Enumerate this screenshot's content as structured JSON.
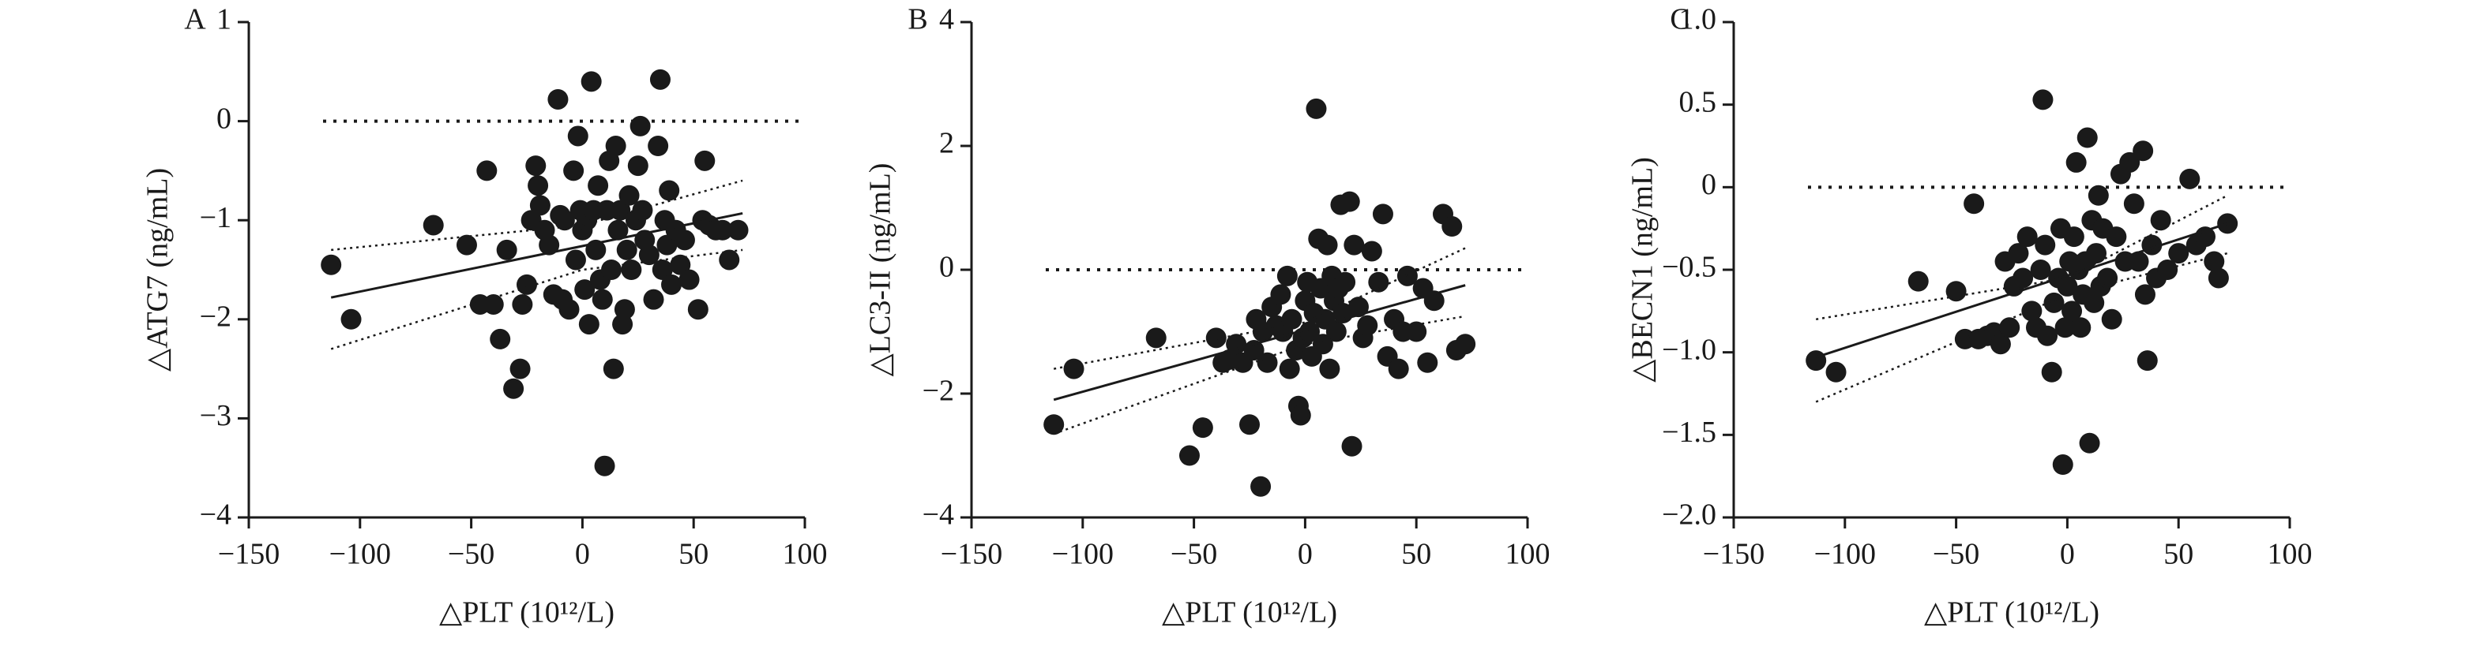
{
  "chart_data": [
    {
      "type": "scatter",
      "panel_label": "A",
      "ylabel": "△ATG7 (ng/mL)",
      "xlabel": "△PLT (10¹²/L)",
      "color": "#1a1a1a",
      "xlim": [
        -150,
        100
      ],
      "xticks": [
        {
          "value": -150,
          "label": "−150"
        },
        {
          "value": -100,
          "label": "−100"
        },
        {
          "value": -50,
          "label": "−50"
        },
        0,
        50,
        100
      ],
      "ylim": [
        -4,
        1
      ],
      "yticks": [
        1,
        0,
        {
          "value": -1,
          "label": "−1"
        },
        {
          "value": -2,
          "label": "−2"
        },
        {
          "value": -3,
          "label": "−3"
        },
        {
          "value": -4,
          "label": "−4"
        }
      ],
      "reference_y": 0,
      "x": [
        -113,
        -104,
        -67,
        -52,
        -46,
        -43,
        -40,
        -37,
        -34,
        -31,
        -28,
        -27,
        -25,
        -23,
        -21,
        -20,
        -19,
        -17,
        -15,
        -13,
        -11,
        -10,
        -9,
        -8,
        -6,
        -4,
        -3,
        -2,
        -1,
        0,
        1,
        2,
        3,
        4,
        5,
        6,
        7,
        8,
        9,
        10,
        11,
        12,
        13,
        14,
        15,
        16,
        17,
        18,
        19,
        20,
        21,
        22,
        24,
        25,
        26,
        27,
        28,
        30,
        32,
        34,
        35,
        36,
        37,
        38,
        39,
        40,
        42,
        44,
        46,
        48,
        52,
        54,
        55,
        57,
        60,
        63,
        66,
        70
      ],
      "values": [
        -1.45,
        -2.0,
        -1.05,
        -1.25,
        -1.85,
        -0.5,
        -1.85,
        -2.2,
        -1.3,
        -2.7,
        -2.5,
        -1.85,
        -1.65,
        -1.0,
        -0.45,
        -0.65,
        -0.85,
        -1.1,
        -1.25,
        -1.75,
        0.22,
        -0.95,
        -1.8,
        -1.0,
        -1.9,
        -0.5,
        -1.4,
        -0.15,
        -0.9,
        -1.1,
        -1.7,
        -1.0,
        -2.05,
        0.4,
        -0.9,
        -1.3,
        -0.65,
        -1.6,
        -1.8,
        -3.48,
        -0.9,
        -0.4,
        -1.5,
        -2.5,
        -0.25,
        -1.1,
        -0.9,
        -2.05,
        -1.9,
        -1.3,
        -0.75,
        -1.5,
        -1.0,
        -0.45,
        -0.05,
        -0.9,
        -1.2,
        -1.35,
        -1.8,
        -0.25,
        0.42,
        -1.5,
        -1.0,
        -1.25,
        -0.7,
        -1.65,
        -1.1,
        -1.45,
        -1.2,
        -1.6,
        -1.9,
        -1.0,
        -0.4,
        -1.05,
        -1.1,
        -1.1,
        -1.4,
        -1.1
      ],
      "fit": {
        "x": [
          -113,
          72
        ],
        "values": [
          -1.78,
          -0.93
        ]
      },
      "ci_upper": {
        "x": [
          -113,
          0,
          72
        ],
        "values": [
          -1.3,
          -1.05,
          -0.6
        ]
      },
      "ci_lower": {
        "x": [
          -113,
          0,
          72
        ],
        "values": [
          -2.3,
          -1.5,
          -1.3
        ]
      }
    },
    {
      "type": "scatter",
      "panel_label": "B",
      "ylabel": "△LC3-II (ng/mL)",
      "xlabel": "△PLT (10¹²/L)",
      "color": "#1a1a1a",
      "xlim": [
        -150,
        100
      ],
      "xticks": [
        {
          "value": -150,
          "label": "−150"
        },
        {
          "value": -100,
          "label": "−100"
        },
        {
          "value": -50,
          "label": "−50"
        },
        0,
        50,
        100
      ],
      "ylim": [
        -4,
        4
      ],
      "yticks": [
        4,
        2,
        0,
        {
          "value": -2,
          "label": "−2"
        },
        {
          "value": -4,
          "label": "−4"
        }
      ],
      "reference_y": 0,
      "x": [
        -113,
        -104,
        -67,
        -52,
        -46,
        -40,
        -37,
        -34,
        -31,
        -28,
        -25,
        -23,
        -22,
        -20,
        -19,
        -17,
        -15,
        -13,
        -11,
        -10,
        -8,
        -7,
        -6,
        -4,
        -3,
        -2,
        -1,
        0,
        1,
        2,
        3,
        4,
        5,
        6,
        7,
        8,
        9,
        10,
        11,
        12,
        13,
        14,
        15,
        16,
        17,
        18,
        20,
        21,
        22,
        24,
        26,
        28,
        30,
        33,
        35,
        37,
        40,
        42,
        44,
        46,
        50,
        53,
        55,
        58,
        62,
        66,
        68,
        72
      ],
      "values": [
        -2.5,
        -1.6,
        -1.1,
        -3.0,
        -2.55,
        -1.1,
        -1.5,
        -1.45,
        -1.2,
        -1.5,
        -2.5,
        -1.3,
        -0.8,
        -3.5,
        -1.0,
        -1.5,
        -0.6,
        -0.9,
        -0.4,
        -1.0,
        -0.1,
        -1.6,
        -0.8,
        -1.3,
        -2.2,
        -2.35,
        -1.1,
        -0.5,
        -0.2,
        -1.0,
        -1.4,
        -0.7,
        2.6,
        0.5,
        -0.3,
        -1.2,
        -0.8,
        0.4,
        -1.6,
        -0.1,
        -0.5,
        -1.0,
        -0.3,
        1.05,
        -0.7,
        -0.2,
        1.1,
        -2.85,
        0.4,
        -0.6,
        -1.1,
        -0.9,
        0.3,
        -0.2,
        0.9,
        -1.4,
        -0.8,
        -1.6,
        -1.0,
        -0.1,
        -1.0,
        -0.3,
        -1.5,
        -0.5,
        0.9,
        0.7,
        -1.3,
        -1.2
      ],
      "fit": {
        "x": [
          -113,
          72
        ],
        "values": [
          -2.1,
          -0.25
        ]
      },
      "ci_upper": {
        "x": [
          -113,
          0,
          72
        ],
        "values": [
          -1.6,
          -0.85,
          0.35
        ]
      },
      "ci_lower": {
        "x": [
          -113,
          0,
          72
        ],
        "values": [
          -2.65,
          -1.2,
          -0.75
        ]
      }
    },
    {
      "type": "scatter",
      "panel_label": "C",
      "ylabel": "△BECN1 (ng/mL)",
      "xlabel": "△PLT (10¹²/L)",
      "color": "#1a1a1a",
      "xlim": [
        -150,
        100
      ],
      "xticks": [
        {
          "value": -150,
          "label": "−150"
        },
        {
          "value": -100,
          "label": "−100"
        },
        {
          "value": -50,
          "label": "−50"
        },
        0,
        50,
        100
      ],
      "ylim": [
        -2,
        1
      ],
      "yticks": [
        {
          "value": 1,
          "label": "1.0"
        },
        0.5,
        0,
        {
          "value": -0.5,
          "label": "−0.5"
        },
        {
          "value": -1,
          "label": "−1.0"
        },
        {
          "value": -1.5,
          "label": "−1.5"
        },
        {
          "value": -2,
          "label": "−2.0"
        }
      ],
      "reference_y": 0,
      "x": [
        -113,
        -104,
        -67,
        -50,
        -46,
        -42,
        -40,
        -36,
        -33,
        -30,
        -28,
        -26,
        -24,
        -22,
        -20,
        -18,
        -16,
        -14,
        -12,
        -11,
        -10,
        -9,
        -7,
        -6,
        -4,
        -3,
        -2,
        -1,
        0,
        1,
        2,
        3,
        4,
        5,
        6,
        7,
        8,
        9,
        10,
        11,
        12,
        13,
        14,
        15,
        16,
        18,
        20,
        22,
        24,
        26,
        28,
        30,
        32,
        34,
        35,
        36,
        38,
        40,
        42,
        45,
        50,
        55,
        58,
        62,
        66,
        68,
        72
      ],
      "values": [
        -1.05,
        -1.12,
        -0.57,
        -0.63,
        -0.92,
        -0.1,
        -0.92,
        -0.9,
        -0.88,
        -0.95,
        -0.45,
        -0.85,
        -0.6,
        -0.4,
        -0.55,
        -0.3,
        -0.75,
        -0.85,
        -0.5,
        0.53,
        -0.35,
        -0.9,
        -1.12,
        -0.7,
        -0.55,
        -0.25,
        -1.68,
        -0.85,
        -0.6,
        -0.45,
        -0.75,
        -0.3,
        0.15,
        -0.5,
        -0.85,
        -0.65,
        -0.45,
        0.3,
        -1.55,
        -0.2,
        -0.7,
        -0.4,
        -0.05,
        -0.6,
        -0.25,
        -0.55,
        -0.8,
        -0.3,
        0.08,
        -0.45,
        0.15,
        -0.1,
        -0.45,
        0.22,
        -0.65,
        -1.05,
        -0.35,
        -0.55,
        -0.2,
        -0.5,
        -0.4,
        0.05,
        -0.35,
        -0.3,
        -0.45,
        -0.55,
        -0.22
      ],
      "fit": {
        "x": [
          -113,
          72
        ],
        "values": [
          -1.03,
          -0.22
        ]
      },
      "ci_upper": {
        "x": [
          -113,
          0,
          72
        ],
        "values": [
          -0.8,
          -0.55,
          -0.05
        ]
      },
      "ci_lower": {
        "x": [
          -113,
          0,
          72
        ],
        "values": [
          -1.3,
          -0.65,
          -0.4
        ]
      }
    }
  ]
}
